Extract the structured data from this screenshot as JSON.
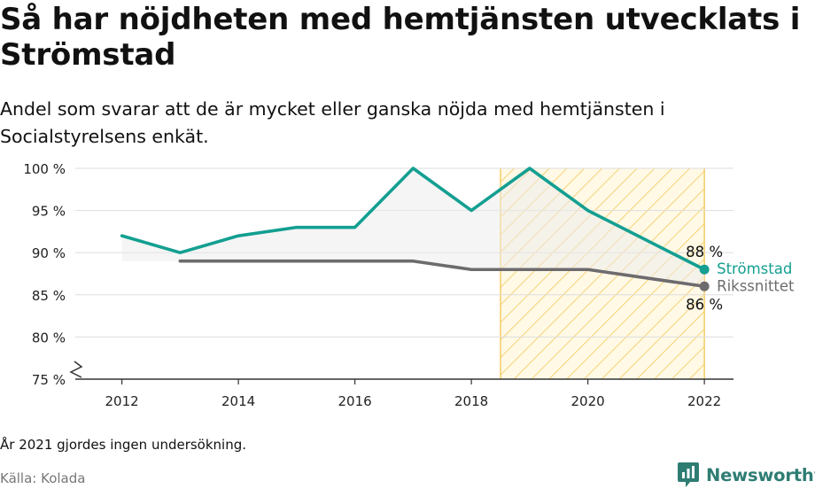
{
  "header": {
    "title": "Så har nöjdheten med hemtjänsten utvecklats i Strömstad",
    "subtitle": "Andel som svarar att de är mycket eller ganska nöjda med hemtjänsten i Socialstyrelsens enkät."
  },
  "chart_data": {
    "type": "line",
    "x_ticks": [
      2012,
      2014,
      2016,
      2018,
      2020,
      2022
    ],
    "y_ticks": [
      75,
      80,
      85,
      90,
      95,
      100
    ],
    "y_tick_labels": [
      "75 %",
      "80 %",
      "85 %",
      "90 %",
      "95 %",
      "100 %"
    ],
    "xlim": [
      2011.2,
      2022.5
    ],
    "ylim": [
      75,
      100
    ],
    "y_axis_break": true,
    "grid": "horizontal",
    "highlight_period": {
      "from": 2018.5,
      "to": 2022
    },
    "series": [
      {
        "name": "Strömstad",
        "color": "#139f91",
        "x": [
          2012,
          2013,
          2014,
          2015,
          2016,
          2017,
          2018,
          2019,
          2020,
          2022
        ],
        "values": [
          92,
          90,
          92,
          93,
          93,
          100,
          95,
          100,
          95,
          88
        ],
        "end_label": "88 %"
      },
      {
        "name": "Rikssnittet",
        "color": "#6d6b6e",
        "x": [
          2013,
          2014,
          2015,
          2016,
          2017,
          2018,
          2019,
          2020,
          2022
        ],
        "values": [
          89,
          89,
          89,
          89,
          89,
          88,
          88,
          88,
          86
        ],
        "end_label": "86 %"
      }
    ]
  },
  "footer": {
    "note": "År 2021 gjordes ingen undersökning.",
    "source": "Källa: Kolada",
    "brand": "Newsworthy",
    "brand_color": "#2e7d73"
  }
}
